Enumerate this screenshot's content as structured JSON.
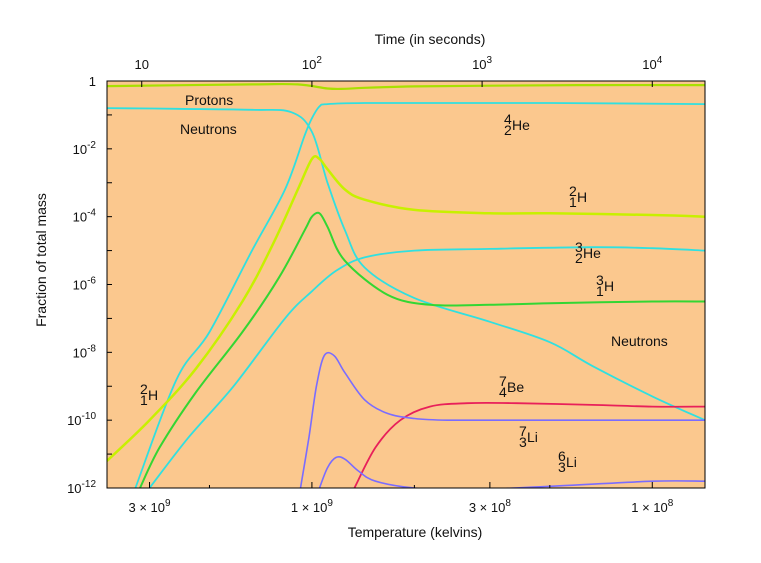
{
  "chart_data": {
    "type": "line",
    "title": "",
    "xlabel": "Temperature (kelvins)",
    "x2label": "Time (in seconds)",
    "ylabel": "Fraction of total mass",
    "y_scale": "log",
    "y_tick_labels": [
      {
        "base": "1",
        "exp": "",
        "value": 0
      },
      {
        "base": "10",
        "exp": "-2",
        "value": -2
      },
      {
        "base": "10",
        "exp": "-4",
        "value": -4
      },
      {
        "base": "10",
        "exp": "-6",
        "value": -6
      },
      {
        "base": "10",
        "exp": "-8",
        "value": -8
      },
      {
        "base": "10",
        "exp": "-10",
        "value": -10
      },
      {
        "base": "10",
        "exp": "-12",
        "value": -12
      }
    ],
    "ylim_log10": [
      -12,
      0
    ],
    "x_temperature_ticks": [
      {
        "mant": "3 × 10",
        "exp": "9",
        "value": 3000000000
      },
      {
        "mant": "1 × 10",
        "exp": "9",
        "value": 1000000000
      },
      {
        "mant": "3 × 10",
        "exp": "8",
        "value": 300000000
      },
      {
        "mant": "1 × 10",
        "exp": "8",
        "value": 100000000
      }
    ],
    "x_time_ticks": [
      {
        "base": "10",
        "exp": "",
        "value": 10
      },
      {
        "base": "10",
        "exp": "2",
        "value": 100
      },
      {
        "base": "10",
        "exp": "3",
        "value": 1000
      },
      {
        "base": "10",
        "exp": "4",
        "value": 10000
      }
    ],
    "xlim_temperature": [
      4000000000,
      70000000
    ],
    "series_note_log10_mass_fraction_vs_temperature": true,
    "series": [
      {
        "name": "Protons",
        "color": "#a8e000",
        "width": 2.2,
        "points": [
          [
            4000000000.0,
            -0.15
          ],
          [
            1500000000.0,
            -0.1
          ],
          [
            1100000000.0,
            -0.1
          ],
          [
            900000000.0,
            -0.22
          ],
          [
            800000000.0,
            -0.23
          ],
          [
            700000000.0,
            -0.2
          ],
          [
            500000000.0,
            -0.16
          ],
          [
            300000000.0,
            -0.14
          ],
          [
            150000000.0,
            -0.12
          ],
          [
            70000000.0,
            -0.12
          ]
        ]
      },
      {
        "name": "Neutrons",
        "color": "#30e0e0",
        "width": 1.8,
        "points": [
          [
            4000000000.0,
            -0.8
          ],
          [
            2500000000.0,
            -0.82
          ],
          [
            1500000000.0,
            -0.85
          ],
          [
            1150000000.0,
            -0.92
          ],
          [
            1000000000.0,
            -1.5
          ],
          [
            900000000.0,
            -3.0
          ],
          [
            800000000.0,
            -4.4
          ],
          [
            700000000.0,
            -5.5
          ],
          [
            500000000.0,
            -6.4
          ],
          [
            300000000.0,
            -7.1
          ],
          [
            200000000.0,
            -7.7
          ],
          [
            150000000.0,
            -8.4
          ],
          [
            100000000.0,
            -9.3
          ],
          [
            70000000.0,
            -10.0
          ]
        ]
      },
      {
        "name": "⁴₂He",
        "color": "#30e0e0",
        "width": 1.8,
        "points": [
          [
            3300000000.0,
            -12.0
          ],
          [
            2500000000.0,
            -8.8
          ],
          [
            2000000000.0,
            -7.4
          ],
          [
            1500000000.0,
            -5.0
          ],
          [
            1200000000.0,
            -3.2
          ],
          [
            1050000000.0,
            -1.6
          ],
          [
            1000000000.0,
            -1.1
          ],
          [
            950000000.0,
            -0.75
          ],
          [
            900000000.0,
            -0.68
          ],
          [
            700000000.0,
            -0.65
          ],
          [
            400000000.0,
            -0.65
          ],
          [
            200000000.0,
            -0.65
          ],
          [
            70000000.0,
            -0.68
          ]
        ]
      },
      {
        "name": "²₁H",
        "color": "#c8f000",
        "width": 2.5,
        "points": [
          [
            4000000000.0,
            -11.2
          ],
          [
            3000000000.0,
            -10.0
          ],
          [
            2200000000.0,
            -8.5
          ],
          [
            1600000000.0,
            -6.5
          ],
          [
            1300000000.0,
            -4.8
          ],
          [
            1100000000.0,
            -3.2
          ],
          [
            1000000000.0,
            -2.3
          ],
          [
            950000000.0,
            -2.3
          ],
          [
            900000000.0,
            -2.6
          ],
          [
            800000000.0,
            -3.2
          ],
          [
            700000000.0,
            -3.5
          ],
          [
            500000000.0,
            -3.8
          ],
          [
            300000000.0,
            -3.9
          ],
          [
            200000000.0,
            -3.9
          ],
          [
            100000000.0,
            -3.95
          ],
          [
            70000000.0,
            -4.0
          ]
        ]
      },
      {
        "name": "³₂He",
        "color": "#30e0e0",
        "width": 1.8,
        "points": [
          [
            3000000000.0,
            -12.0
          ],
          [
            2300000000.0,
            -10.5
          ],
          [
            1700000000.0,
            -9.0
          ],
          [
            1200000000.0,
            -7.0
          ],
          [
            1000000000.0,
            -6.2
          ],
          [
            850000000.0,
            -5.6
          ],
          [
            700000000.0,
            -5.2
          ],
          [
            500000000.0,
            -5.0
          ],
          [
            300000000.0,
            -4.95
          ],
          [
            150000000.0,
            -4.9
          ],
          [
            100000000.0,
            -4.93
          ],
          [
            70000000.0,
            -5.0
          ]
        ]
      },
      {
        "name": "³₁H",
        "color": "#33d633",
        "width": 2.0,
        "points": [
          [
            3200000000.0,
            -12.0
          ],
          [
            2800000000.0,
            -10.8
          ],
          [
            2200000000.0,
            -9.2
          ],
          [
            1600000000.0,
            -7.4
          ],
          [
            1250000000.0,
            -5.8
          ],
          [
            1050000000.0,
            -4.4
          ],
          [
            1000000000.0,
            -4.0
          ],
          [
            950000000.0,
            -3.9
          ],
          [
            900000000.0,
            -4.3
          ],
          [
            800000000.0,
            -5.3
          ],
          [
            600000000.0,
            -6.3
          ],
          [
            450000000.0,
            -6.6
          ],
          [
            300000000.0,
            -6.6
          ],
          [
            200000000.0,
            -6.55
          ],
          [
            100000000.0,
            -6.5
          ],
          [
            70000000.0,
            -6.5
          ]
        ]
      },
      {
        "name": "⁷₄Be",
        "color": "#e8205a",
        "width": 1.8,
        "points": [
          [
            750000000.0,
            -12.0
          ],
          [
            650000000.0,
            -10.8
          ],
          [
            550000000.0,
            -10.0
          ],
          [
            450000000.0,
            -9.6
          ],
          [
            350000000.0,
            -9.5
          ],
          [
            250000000.0,
            -9.5
          ],
          [
            150000000.0,
            -9.55
          ],
          [
            100000000.0,
            -9.6
          ],
          [
            70000000.0,
            -9.6
          ]
        ]
      },
      {
        "name": "⁷₃Li",
        "color": "#7a6cff",
        "width": 1.6,
        "points": [
          [
            1080000000.0,
            -12.0
          ],
          [
            1020000000.0,
            -10.5
          ],
          [
            970000000.0,
            -9.0
          ],
          [
            920000000.0,
            -8.1
          ],
          [
            860000000.0,
            -8.1
          ],
          [
            800000000.0,
            -8.6
          ],
          [
            700000000.0,
            -9.4
          ],
          [
            600000000.0,
            -9.8
          ],
          [
            500000000.0,
            -9.95
          ],
          [
            400000000.0,
            -10.0
          ],
          [
            250000000.0,
            -10.0
          ],
          [
            150000000.0,
            -10.0
          ],
          [
            70000000.0,
            -10.0
          ]
        ]
      },
      {
        "name": "⁶₃Li",
        "color": "#7a6cff",
        "width": 1.6,
        "points": [
          [
            950000000.0,
            -12.0
          ],
          [
            900000000.0,
            -11.4
          ],
          [
            850000000.0,
            -11.1
          ],
          [
            800000000.0,
            -11.15
          ],
          [
            730000000.0,
            -11.5
          ],
          [
            650000000.0,
            -11.8
          ],
          [
            500000000.0,
            -12.0
          ],
          [
            350000000.0,
            -12.05
          ],
          [
            200000000.0,
            -11.95
          ],
          [
            100000000.0,
            -11.8
          ],
          [
            70000000.0,
            -11.8
          ]
        ]
      }
    ],
    "annotations": [
      {
        "name": "protons",
        "text": "Protons"
      },
      {
        "name": "neutrons-top",
        "text": "Neutrons"
      },
      {
        "name": "neutrons-right",
        "text": "Neutrons"
      },
      {
        "name": "he4",
        "mass": "4",
        "charge": "2",
        "sym": "He"
      },
      {
        "name": "h2-right",
        "mass": "2",
        "charge": "1",
        "sym": "H"
      },
      {
        "name": "he3",
        "mass": "3",
        "charge": "2",
        "sym": "He"
      },
      {
        "name": "h3",
        "mass": "3",
        "charge": "1",
        "sym": "H"
      },
      {
        "name": "be7",
        "mass": "7",
        "charge": "4",
        "sym": "Be"
      },
      {
        "name": "li7",
        "mass": "7",
        "charge": "3",
        "sym": "Li"
      },
      {
        "name": "li6",
        "mass": "6",
        "charge": "3",
        "sym": "Li"
      },
      {
        "name": "h2-left",
        "mass": "2",
        "charge": "1",
        "sym": "H"
      }
    ],
    "plot_background": "#fbc88e",
    "grid": false,
    "legend": "none"
  }
}
